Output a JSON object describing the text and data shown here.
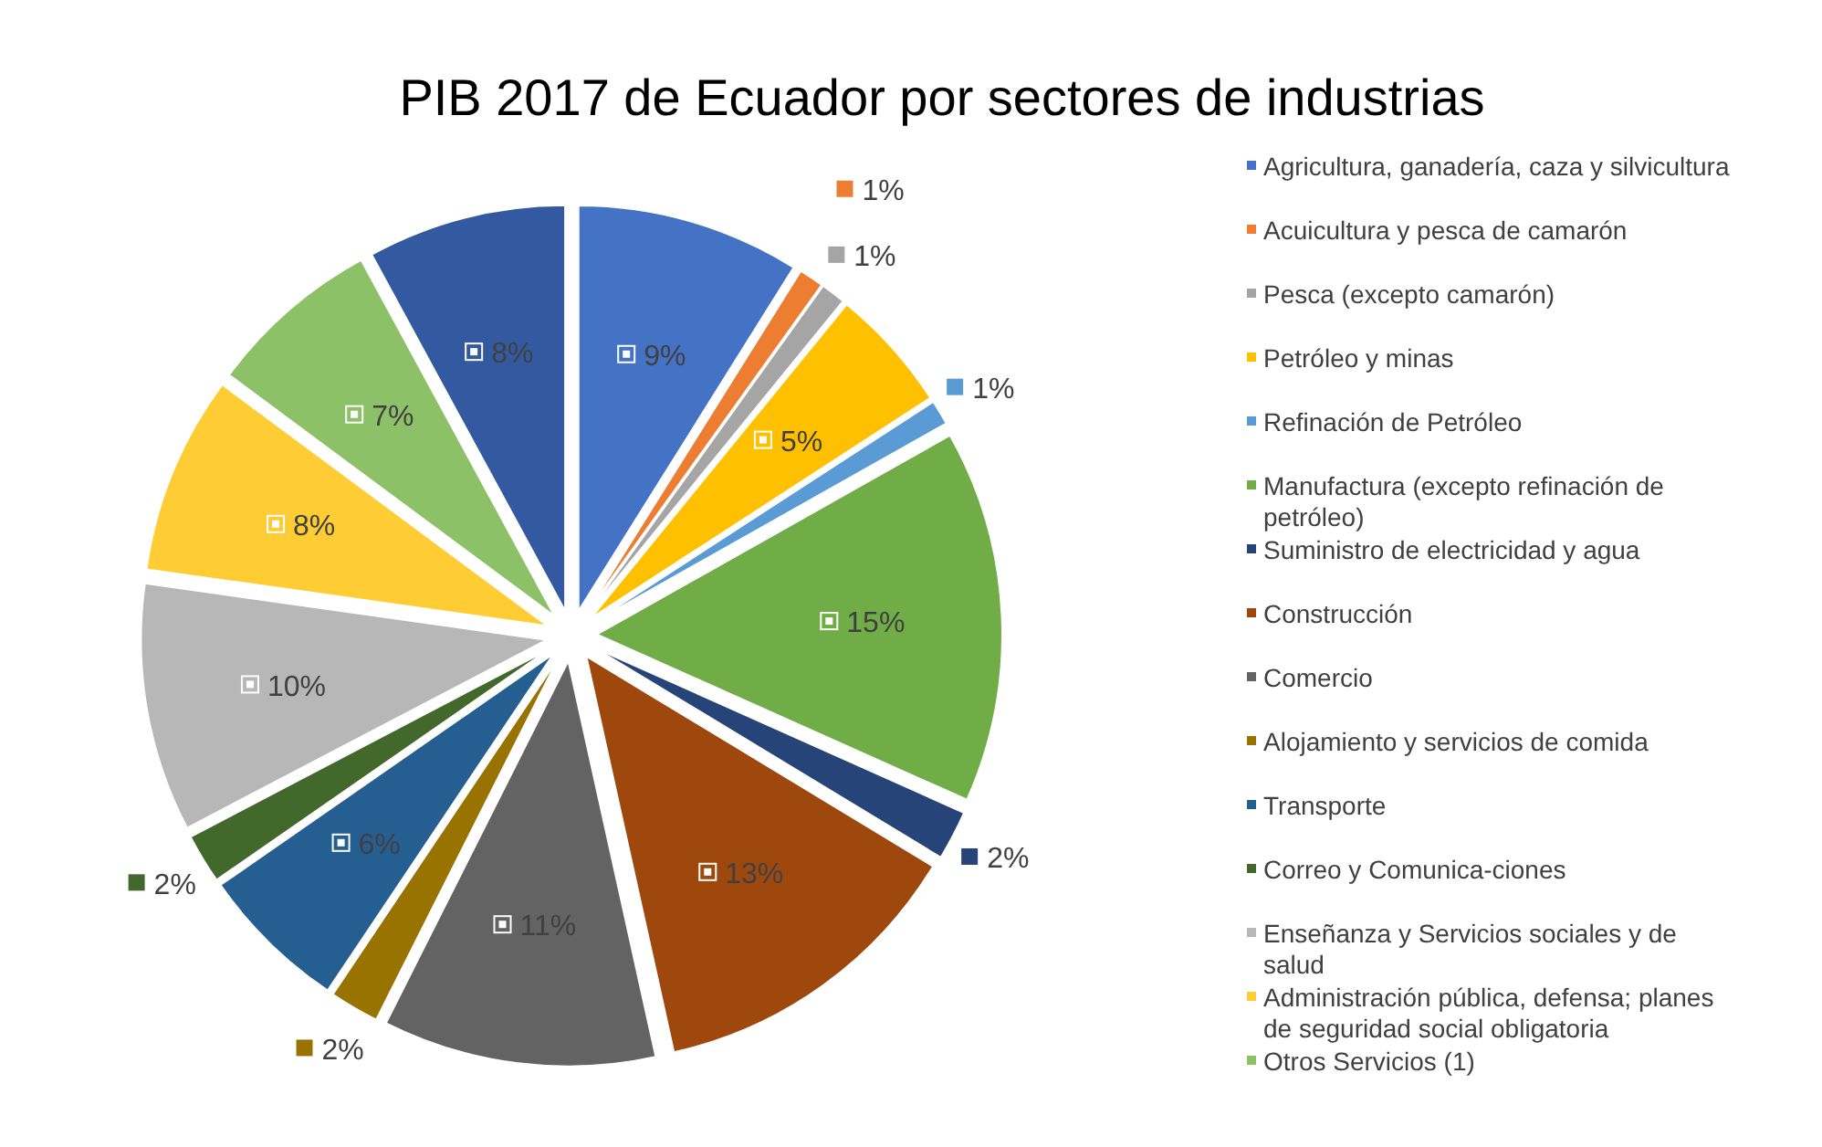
{
  "chart_data": {
    "type": "pie",
    "title": "PIB 2017 de Ecuador por sectores de industrias",
    "categories": [
      "Agricultura, ganadería, caza y silvicultura",
      "Acuicultura y pesca de camarón",
      "Pesca (excepto camarón)",
      "Petróleo y minas",
      "Refinación de Petróleo",
      "Manufactura (excepto refinación de petróleo)",
      "Suministro de electricidad y agua",
      "Construcción",
      "Comercio",
      "Alojamiento y servicios de comida",
      "Transporte",
      "Correo y Comunica-ciones",
      "Enseñanza  y Servicios sociales y de salud",
      "Administración pública, defensa; planes de seguridad social obligatoria",
      "Otros Servicios (1)",
      null
    ],
    "values": [
      9,
      1,
      1,
      5,
      1,
      15,
      2,
      13,
      11,
      2,
      6,
      2,
      10,
      8,
      7,
      8
    ],
    "value_labels": [
      "9%",
      "1%",
      "1%",
      "5%",
      "1%",
      "15%",
      "2%",
      "13%",
      "11%",
      "2%",
      "6%",
      "2%",
      "10%",
      "8%",
      "7%",
      "8%"
    ],
    "colors": [
      "#4472c4",
      "#ed7d31",
      "#a5a5a5",
      "#ffc000",
      "#5b9bd5",
      "#70ad47",
      "#264478",
      "#9e480e",
      "#636363",
      "#997300",
      "#255e91",
      "#43682b",
      "#b7b7b7",
      "#ffcd33",
      "#8cc168",
      "#335aa1"
    ],
    "legend": "right"
  }
}
